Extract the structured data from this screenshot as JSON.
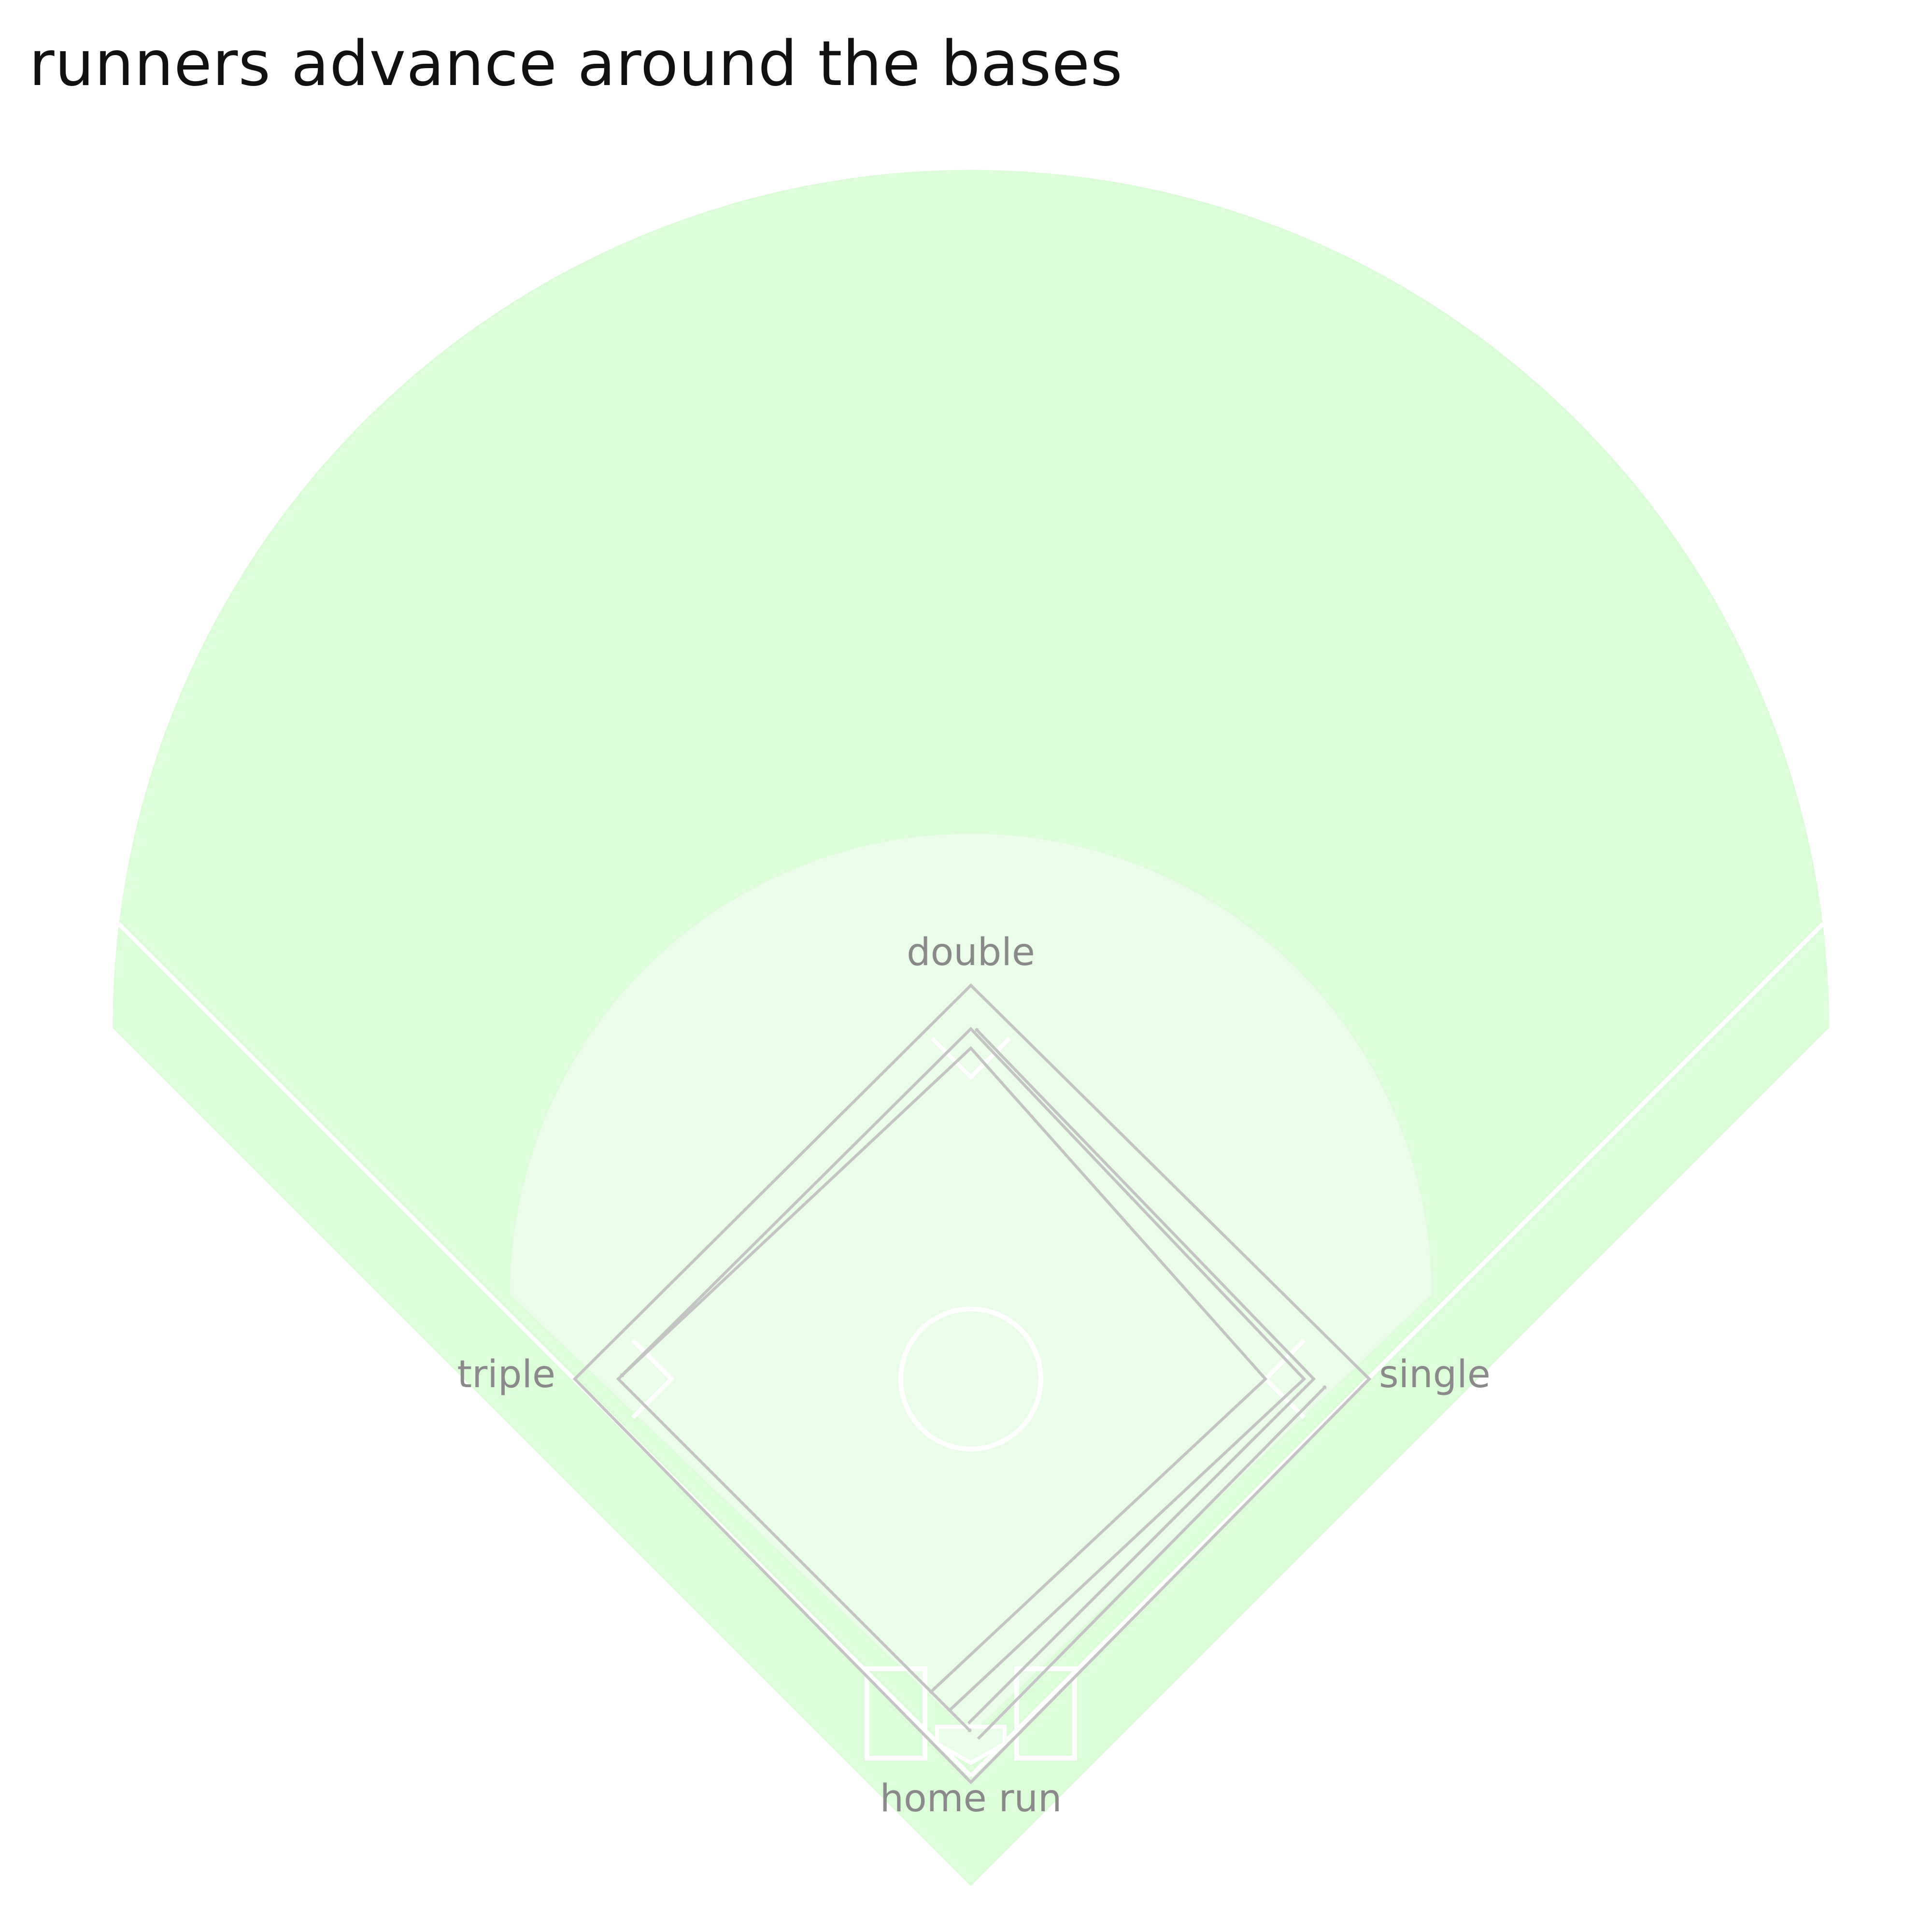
{
  "title": "runners advance around the bases",
  "labels": {
    "first_base": "single",
    "second_base": "double",
    "third_base": "triple",
    "home_plate": "home run"
  },
  "colors": {
    "outfield": "#dbfed9",
    "infield": "#e9fde8",
    "chalk": "#ffffff",
    "base_path": "#c4c4c4",
    "label": "#8a8a8a",
    "title": "#111111"
  }
}
